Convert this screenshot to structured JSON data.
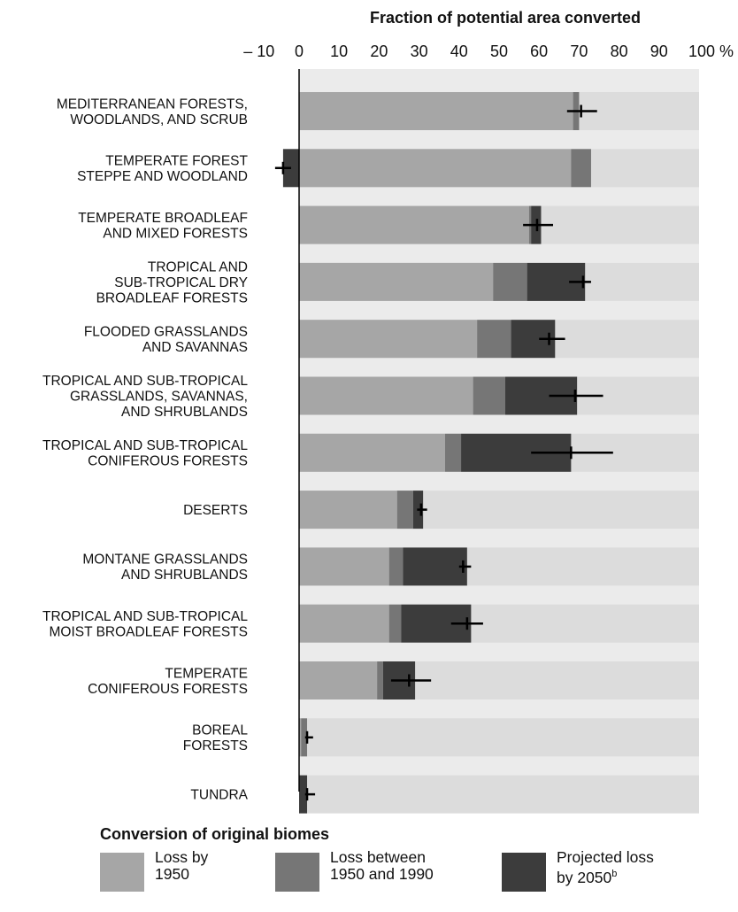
{
  "chart_data": {
    "type": "bar",
    "orientation": "horizontal",
    "stacked": true,
    "title": "Fraction of potential area converted",
    "x_ticks": [
      "– 10",
      "0",
      "10",
      "20",
      "30",
      "40",
      "50",
      "60",
      "70",
      "80",
      "90",
      "100 %"
    ],
    "xlim": [
      -10,
      100
    ],
    "categories": [
      [
        "MEDITERRANEAN FORESTS,",
        "WOODLANDS, AND SCRUB"
      ],
      [
        "TEMPERATE FOREST",
        "STEPPE AND WOODLAND"
      ],
      [
        "TEMPERATE BROADLEAF",
        "AND MIXED FORESTS"
      ],
      [
        "TROPICAL AND",
        "SUB-TROPICAL DRY",
        "BROADLEAF FORESTS"
      ],
      [
        "FLOODED GRASSLANDS",
        "AND SAVANNAS"
      ],
      [
        "TROPICAL AND SUB-TROPICAL",
        "GRASSLANDS, SAVANNAS,",
        "AND SHRUBLANDS"
      ],
      [
        "TROPICAL AND SUB-TROPICAL",
        "CONIFEROUS FORESTS"
      ],
      [
        "DESERTS"
      ],
      [
        "MONTANE GRASSLANDS",
        "AND SHRUBLANDS"
      ],
      [
        "TROPICAL AND SUB-TROPICAL",
        "MOIST BROADLEAF FORESTS"
      ],
      [
        "TEMPERATE",
        "CONIFEROUS FORESTS"
      ],
      [
        "BOREAL",
        "FORESTS"
      ],
      [
        "TUNDRA"
      ]
    ],
    "series": [
      {
        "name": "Loss by 1950",
        "color": "#a6a6a6",
        "values": [
          68.5,
          68,
          57.5,
          48.5,
          44.5,
          43.5,
          36.5,
          24.5,
          22.5,
          22.5,
          19.5,
          0.5,
          0
        ]
      },
      {
        "name": "Loss between 1950 and 1990",
        "color": "#767676",
        "values": [
          1.5,
          5,
          0.5,
          8.5,
          8.5,
          8.0,
          4.0,
          4.0,
          3.5,
          3.0,
          1.5,
          1.5,
          0
        ]
      },
      {
        "name": "Projected loss by 2050",
        "color": "#3c3c3c",
        "values": [
          0,
          -4,
          2.5,
          14.5,
          11.0,
          18.0,
          27.5,
          2.5,
          16.0,
          17.5,
          8.0,
          0,
          2
        ]
      }
    ],
    "error_bars": [
      {
        "center": 70.5,
        "low": 67,
        "high": 74.5
      },
      {
        "center": -4,
        "low": -6,
        "high": -2
      },
      {
        "center": 59.5,
        "low": 56,
        "high": 63.5
      },
      {
        "center": 71,
        "low": 67.5,
        "high": 73
      },
      {
        "center": 62.5,
        "low": 60,
        "high": 66.5
      },
      {
        "center": 69,
        "low": 62.5,
        "high": 76
      },
      {
        "center": 68,
        "low": 58,
        "high": 78.5
      },
      {
        "center": 30.5,
        "low": 29.5,
        "high": 32
      },
      {
        "center": 41,
        "low": 40,
        "high": 43
      },
      {
        "center": 42,
        "low": 38,
        "high": 46
      },
      {
        "center": 27.5,
        "low": 23,
        "high": 33
      },
      {
        "center": 2,
        "low": 1.5,
        "high": 3.5
      },
      {
        "center": 2,
        "low": 1.5,
        "high": 4
      }
    ],
    "background_band_color": "#dcdcdc",
    "gap_band_color": "#ebebeb",
    "axis_color": "#000000"
  },
  "legend": {
    "title": "Conversion of original biomes",
    "items": [
      {
        "line1": "Loss by",
        "line2": "1950",
        "sup": "",
        "color": "#a6a6a6"
      },
      {
        "line1": "Loss between",
        "line2": "1950 and 1990",
        "sup": "",
        "color": "#767676"
      },
      {
        "line1": "Projected loss",
        "line2": "by 2050",
        "sup": "b",
        "color": "#3c3c3c"
      }
    ]
  }
}
